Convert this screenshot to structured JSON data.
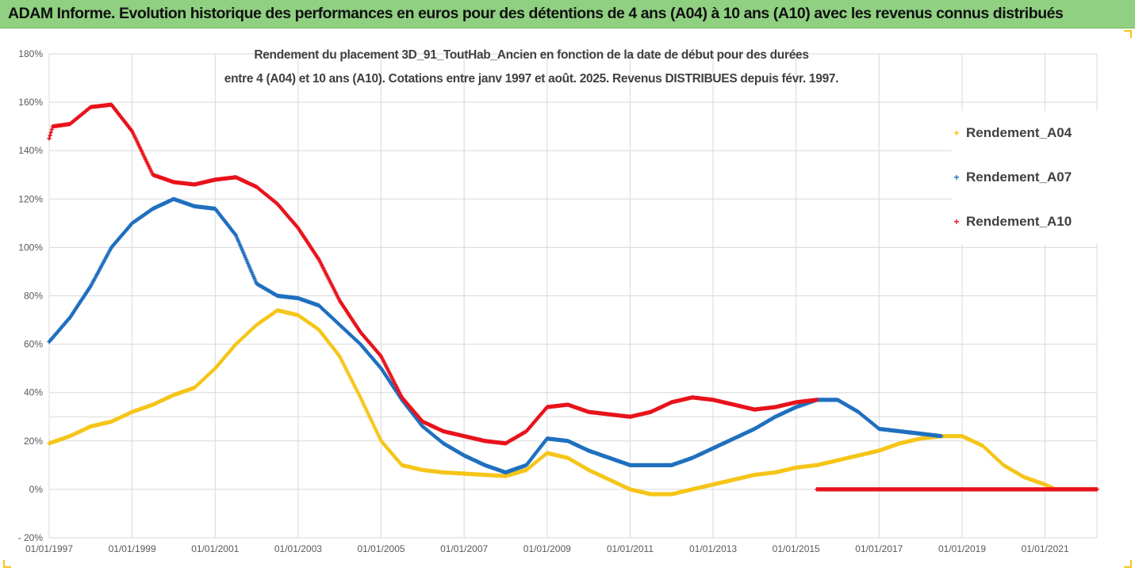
{
  "banner": {
    "title": "ADAM Informe. Evolution historique des performances en euros pour des détentions de 4 ans (A04) à 10 ans (A10) avec les revenus connus distribués"
  },
  "colors": {
    "banner_bg": "#8fd081",
    "A04": "#f5c518",
    "A07": "#1f6fbf",
    "A10": "#e8121b",
    "grid": "#d9d9d9"
  },
  "chart_data": {
    "type": "scatter",
    "title_line1": "Rendement du placement 3D_91_ToutHab_Ancien en fonction de la date de début pour des durées",
    "title_line2": "entre 4 (A04) et 10 ans (A10). Cotations entre janv 1997 et août. 2025. Revenus DISTRIBUES depuis févr. 1997.",
    "x_type": "date",
    "xlim": [
      "1997-01-01",
      "2022-04-01"
    ],
    "ylim": [
      -20,
      180
    ],
    "y_unit": "%",
    "x_ticks": [
      "01/01/1997",
      "01/01/1999",
      "01/01/2001",
      "01/01/2003",
      "01/01/2005",
      "01/01/2007",
      "01/01/2009",
      "01/01/2011",
      "01/01/2013",
      "01/01/2015",
      "01/01/2017",
      "01/01/2019",
      "01/01/2021"
    ],
    "y_ticks": [
      "- 20%",
      "0%",
      "20%",
      "40%",
      "60%",
      "80%",
      "100%",
      "120%",
      "140%",
      "160%",
      "180%"
    ],
    "grid": true,
    "legend_position": "right",
    "series": [
      {
        "name": "Rendement_A04",
        "color": "#f5c518",
        "points": [
          [
            "1997-01",
            19
          ],
          [
            "1997-07",
            22
          ],
          [
            "1998-01",
            26
          ],
          [
            "1998-07",
            28
          ],
          [
            "1999-01",
            32
          ],
          [
            "1999-07",
            35
          ],
          [
            "2000-01",
            39
          ],
          [
            "2000-07",
            42
          ],
          [
            "2001-01",
            50
          ],
          [
            "2001-07",
            60
          ],
          [
            "2002-01",
            68
          ],
          [
            "2002-07",
            74
          ],
          [
            "2003-01",
            72
          ],
          [
            "2003-07",
            66
          ],
          [
            "2004-01",
            55
          ],
          [
            "2004-07",
            38
          ],
          [
            "2005-01",
            20
          ],
          [
            "2005-07",
            10
          ],
          [
            "2006-01",
            8
          ],
          [
            "2006-07",
            7
          ],
          [
            "2007-01",
            6.5
          ],
          [
            "2007-07",
            6
          ],
          [
            "2008-01",
            5.5
          ],
          [
            "2008-07",
            8
          ],
          [
            "2009-01",
            15
          ],
          [
            "2009-07",
            13
          ],
          [
            "2010-01",
            8
          ],
          [
            "2010-07",
            4
          ],
          [
            "2011-01",
            0
          ],
          [
            "2011-07",
            -2
          ],
          [
            "2012-01",
            -2
          ],
          [
            "2012-07",
            0
          ],
          [
            "2013-01",
            2
          ],
          [
            "2013-07",
            4
          ],
          [
            "2014-01",
            6
          ],
          [
            "2014-07",
            7
          ],
          [
            "2015-01",
            9
          ],
          [
            "2015-07",
            10
          ],
          [
            "2016-01",
            12
          ],
          [
            "2016-07",
            14
          ],
          [
            "2017-01",
            16
          ],
          [
            "2017-07",
            19
          ],
          [
            "2018-01",
            21
          ],
          [
            "2018-07",
            22
          ],
          [
            "2019-01",
            22
          ],
          [
            "2019-07",
            18
          ],
          [
            "2020-01",
            10
          ],
          [
            "2020-07",
            5
          ],
          [
            "2021-01",
            2
          ],
          [
            "2021-04",
            0
          ],
          [
            "2021-07",
            0
          ],
          [
            "2022-01",
            0
          ],
          [
            "2022-04",
            0
          ]
        ]
      },
      {
        "name": "Rendement_A07",
        "color": "#1f6fbf",
        "points": [
          [
            "1997-01",
            61
          ],
          [
            "1997-04",
            66
          ],
          [
            "1997-07",
            71
          ],
          [
            "1998-01",
            84
          ],
          [
            "1998-07",
            100
          ],
          [
            "1999-01",
            110
          ],
          [
            "1999-07",
            116
          ],
          [
            "2000-01",
            120
          ],
          [
            "2000-07",
            117
          ],
          [
            "2001-01",
            116
          ],
          [
            "2001-07",
            105
          ],
          [
            "2002-01",
            85
          ],
          [
            "2002-07",
            80
          ],
          [
            "2003-01",
            79
          ],
          [
            "2003-07",
            76
          ],
          [
            "2004-01",
            68
          ],
          [
            "2004-07",
            60
          ],
          [
            "2005-01",
            50
          ],
          [
            "2005-07",
            37
          ],
          [
            "2006-01",
            26
          ],
          [
            "2006-07",
            19
          ],
          [
            "2007-01",
            14
          ],
          [
            "2007-07",
            10
          ],
          [
            "2008-01",
            7
          ],
          [
            "2008-07",
            10
          ],
          [
            "2009-01",
            21
          ],
          [
            "2009-07",
            20
          ],
          [
            "2010-01",
            16
          ],
          [
            "2010-07",
            13
          ],
          [
            "2011-01",
            10
          ],
          [
            "2011-07",
            10
          ],
          [
            "2012-01",
            10
          ],
          [
            "2012-07",
            13
          ],
          [
            "2013-01",
            17
          ],
          [
            "2013-07",
            21
          ],
          [
            "2014-01",
            25
          ],
          [
            "2014-07",
            30
          ],
          [
            "2015-01",
            34
          ],
          [
            "2015-07",
            37
          ],
          [
            "2016-01",
            37
          ],
          [
            "2016-07",
            32
          ],
          [
            "2017-01",
            25
          ],
          [
            "2017-07",
            24
          ],
          [
            "2018-01",
            23
          ],
          [
            "2018-07",
            22
          ]
        ]
      },
      {
        "name": "Rendement_A10",
        "color": "#e8121b",
        "points": [
          [
            "1997-01",
            145
          ],
          [
            "1997-02",
            150
          ],
          [
            "1997-07",
            151
          ],
          [
            "1998-01",
            158
          ],
          [
            "1998-07",
            159
          ],
          [
            "1999-01",
            148
          ],
          [
            "1999-07",
            130
          ],
          [
            "2000-01",
            127
          ],
          [
            "2000-07",
            126
          ],
          [
            "2001-01",
            128
          ],
          [
            "2001-07",
            129
          ],
          [
            "2002-01",
            125
          ],
          [
            "2002-07",
            118
          ],
          [
            "2003-01",
            108
          ],
          [
            "2003-07",
            95
          ],
          [
            "2004-01",
            78
          ],
          [
            "2004-07",
            65
          ],
          [
            "2005-01",
            55
          ],
          [
            "2005-07",
            38
          ],
          [
            "2006-01",
            28
          ],
          [
            "2006-07",
            24
          ],
          [
            "2007-01",
            22
          ],
          [
            "2007-07",
            20
          ],
          [
            "2008-01",
            19
          ],
          [
            "2008-07",
            24
          ],
          [
            "2009-01",
            34
          ],
          [
            "2009-07",
            35
          ],
          [
            "2010-01",
            32
          ],
          [
            "2010-07",
            31
          ],
          [
            "2011-01",
            30
          ],
          [
            "2011-07",
            32
          ],
          [
            "2012-01",
            36
          ],
          [
            "2012-07",
            38
          ],
          [
            "2013-01",
            37
          ],
          [
            "2013-07",
            35
          ],
          [
            "2014-01",
            33
          ],
          [
            "2014-07",
            34
          ],
          [
            "2015-01",
            36
          ],
          [
            "2015-07",
            37
          ]
        ],
        "zero_segment": [
          "2015-07",
          "2022-04"
        ]
      }
    ]
  },
  "legend": {
    "items": [
      {
        "label": "Rendement_A04",
        "marker": "+"
      },
      {
        "label": "Rendement_A07",
        "marker": "+"
      },
      {
        "label": "Rendement_A10",
        "marker": "+"
      }
    ]
  }
}
